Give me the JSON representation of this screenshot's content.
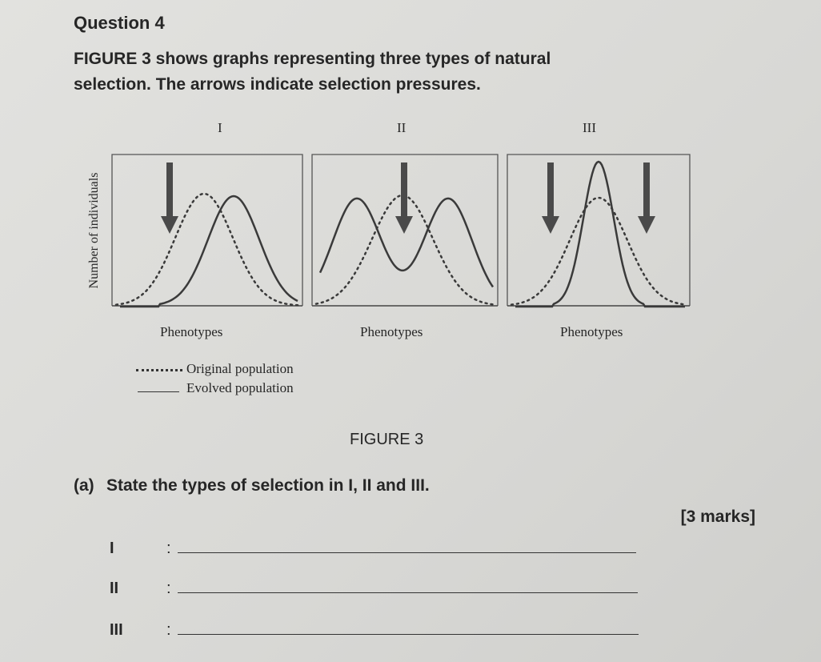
{
  "question": {
    "heading": "Question 4",
    "intro_line1": "FIGURE 3 shows graphs representing three types of natural",
    "intro_line2": "selection. The arrows indicate selection pressures."
  },
  "figure": {
    "panels": [
      {
        "label": "I",
        "xlabel": "Phenotypes",
        "selection_pressure_arrows": 1
      },
      {
        "label": "II",
        "xlabel": "Phenotypes",
        "selection_pressure_arrows": 1
      },
      {
        "label": "III",
        "xlabel": "Phenotypes",
        "selection_pressure_arrows": 2
      }
    ],
    "ylabel": "Number of individuals",
    "legend": {
      "original": "Original population",
      "evolved": "Evolved population"
    },
    "caption": "FIGURE 3",
    "colors": {
      "curve": "#3a3a3a",
      "arrow": "#4a4a4a"
    }
  },
  "part_a": {
    "label": "(a)",
    "text": "State the types of selection in I, II and III.",
    "marks": "[3 marks]",
    "answers": [
      {
        "label": "I",
        "colon": ":",
        "value": ""
      },
      {
        "label": "II",
        "colon": ":",
        "value": ""
      },
      {
        "label": "III",
        "colon": ":",
        "value": ""
      }
    ]
  }
}
